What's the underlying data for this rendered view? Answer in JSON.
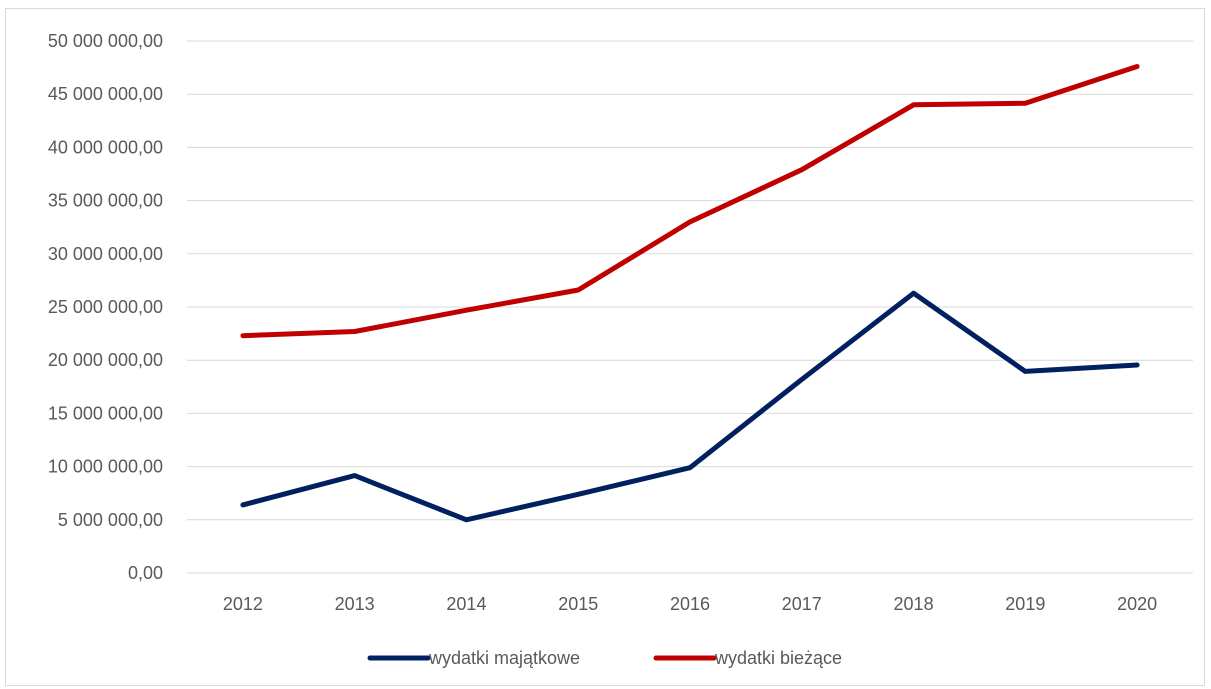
{
  "chart_data": {
    "type": "line",
    "categories": [
      "2012",
      "2013",
      "2014",
      "2015",
      "2016",
      "2017",
      "2018",
      "2019",
      "2020"
    ],
    "series": [
      {
        "name": "wydatki majątkowe",
        "color": "#002060",
        "values": [
          6400000,
          9150000,
          5000000,
          7400000,
          9900000,
          18200000,
          26300000,
          18950000,
          19550000
        ]
      },
      {
        "name": "wydatki bieżące",
        "color": "#c00000",
        "values": [
          22300000,
          22700000,
          24700000,
          26600000,
          33000000,
          37900000,
          44000000,
          44150000,
          47600000
        ]
      }
    ],
    "ylim": [
      0,
      50000000
    ],
    "y_ticks": [
      {
        "value": 0,
        "label": "0,00"
      },
      {
        "value": 5000000,
        "label": "5 000 000,00"
      },
      {
        "value": 10000000,
        "label": "10 000 000,00"
      },
      {
        "value": 15000000,
        "label": "15 000 000,00"
      },
      {
        "value": 20000000,
        "label": "20 000 000,00"
      },
      {
        "value": 25000000,
        "label": "25 000 000,00"
      },
      {
        "value": 30000000,
        "label": "30 000 000,00"
      },
      {
        "value": 35000000,
        "label": "35 000 000,00"
      },
      {
        "value": 40000000,
        "label": "40 000 000,00"
      },
      {
        "value": 45000000,
        "label": "45 000 000,00"
      },
      {
        "value": 50000000,
        "label": "50 000 000,00"
      }
    ],
    "grid": true,
    "legend": "bottom",
    "title": "",
    "xlabel": "",
    "ylabel": ""
  }
}
